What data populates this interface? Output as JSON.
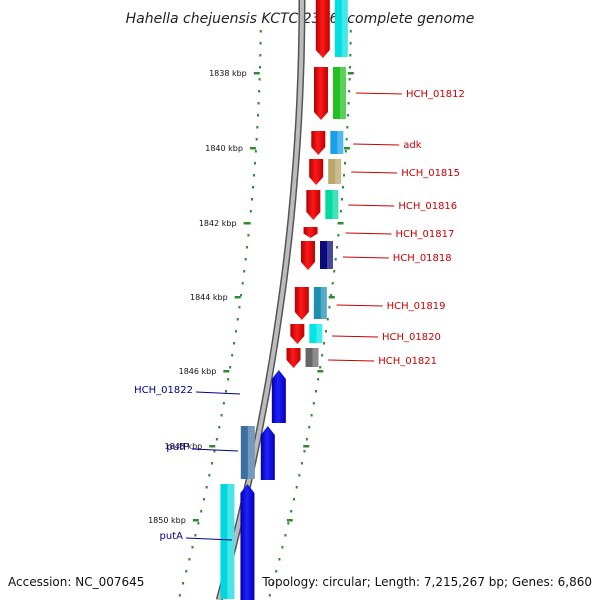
{
  "title": "Hahella chejuensis KCTC 2396, complete genome",
  "footer": {
    "accession": "Accession: NC_007645",
    "summary": "Topology: circular; Length: 7,215,267 bp; Genes: 6,860"
  },
  "ticks": [
    "1838 kbp",
    "1840 kbp",
    "1842 kbp",
    "1844 kbp",
    "1846 kbp",
    "1848 kbp",
    "1850 kbp"
  ],
  "colors": {
    "backbone": "#8c8c8c",
    "tick": "#2e8b2e",
    "forward_label": "#cc0000",
    "reverse_label": "#00008b"
  },
  "forward_genes": [
    {
      "label": "",
      "cog_color": "#00e0e0"
    },
    {
      "label": "HCH_01812",
      "cog_color": "#22c022"
    },
    {
      "label": "adk",
      "cog_color": "#1aa0e8"
    },
    {
      "label": "HCH_01815",
      "cog_color": "#b8a66a"
    },
    {
      "label": "HCH_01816",
      "cog_color": "#00d9a0"
    },
    {
      "label": "HCH_01817",
      "cog_color": ""
    },
    {
      "label": "HCH_01818",
      "cog_color": "#0a0a7a"
    },
    {
      "label": "HCH_01819",
      "cog_color": "#1e8fb0"
    },
    {
      "label": "HCH_01820",
      "cog_color": "#00e6e6"
    },
    {
      "label": "HCH_01821",
      "cog_color": "#666666"
    }
  ],
  "reverse_genes": [
    {
      "label": "HCH_01822",
      "cog_color": ""
    },
    {
      "label": "putP",
      "cog_color": "#3a6fa0"
    },
    {
      "label": "putA",
      "cog_color": "#00d8e0"
    }
  ]
}
